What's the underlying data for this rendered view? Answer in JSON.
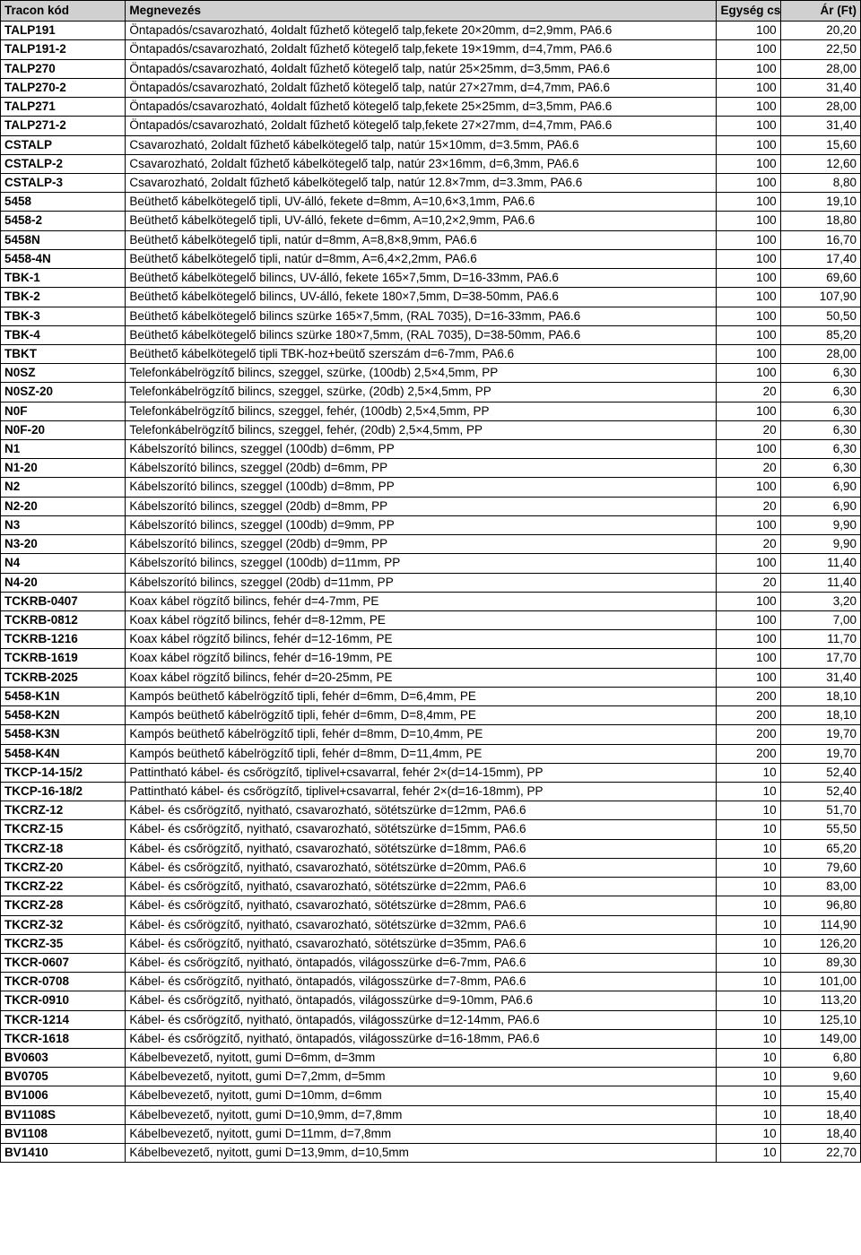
{
  "table": {
    "headers": {
      "code": "Tracon kód",
      "name": "Megnevezés",
      "qty": "Egység csomag",
      "price": "Ár (Ft)"
    },
    "rows": [
      {
        "code": "TALP191",
        "name": "Öntapadós/csavarozható, 4oldalt fűzhető kötegelő talp,fekete 20×20mm, d=2,9mm, PA6.6",
        "qty": "100",
        "price": "20,20"
      },
      {
        "code": "TALP191-2",
        "name": "Öntapadós/csavarozható, 2oldalt fűzhető kötegelő talp,fekete 19×19mm, d=4,7mm, PA6.6",
        "qty": "100",
        "price": "22,50"
      },
      {
        "code": "TALP270",
        "name": "Öntapadós/csavarozható, 4oldalt fűzhető kötegelő talp, natúr 25×25mm, d=3,5mm, PA6.6",
        "qty": "100",
        "price": "28,00"
      },
      {
        "code": "TALP270-2",
        "name": "Öntapadós/csavarozható, 2oldalt fűzhető kötegelő talp, natúr 27×27mm, d=4,7mm, PA6.6",
        "qty": "100",
        "price": "31,40"
      },
      {
        "code": "TALP271",
        "name": "Öntapadós/csavarozható, 4oldalt fűzhető kötegelő talp,fekete 25×25mm, d=3,5mm, PA6.6",
        "qty": "100",
        "price": "28,00"
      },
      {
        "code": "TALP271-2",
        "name": "Öntapadós/csavarozható, 2oldalt fűzhető kötegelő talp,fekete 27×27mm, d=4,7mm, PA6.6",
        "qty": "100",
        "price": "31,40"
      },
      {
        "code": "CSTALP",
        "name": "Csavarozható, 2oldalt fűzhető kábelkötegelő talp, natúr 15×10mm, d=3.5mm, PA6.6",
        "qty": "100",
        "price": "15,60"
      },
      {
        "code": "CSTALP-2",
        "name": "Csavarozható, 2oldalt fűzhető kábelkötegelő talp, natúr 23×16mm, d=6,3mm, PA6.6",
        "qty": "100",
        "price": "12,60"
      },
      {
        "code": "CSTALP-3",
        "name": "Csavarozható, 2oldalt fűzhető kábelkötegelő talp, natúr 12.8×7mm, d=3.3mm, PA6.6",
        "qty": "100",
        "price": "8,80"
      },
      {
        "code": "5458",
        "name": "Beüthető kábelkötegelő tipli, UV-álló, fekete d=8mm, A=10,6×3,1mm, PA6.6",
        "qty": "100",
        "price": "19,10"
      },
      {
        "code": "5458-2",
        "name": "Beüthető kábelkötegelő tipli, UV-álló, fekete d=6mm, A=10,2×2,9mm, PA6.6",
        "qty": "100",
        "price": "18,80"
      },
      {
        "code": "5458N",
        "name": "Beüthető kábelkötegelő tipli, natúr d=8mm, A=8,8×8,9mm, PA6.6",
        "qty": "100",
        "price": "16,70"
      },
      {
        "code": "5458-4N",
        "name": "Beüthető kábelkötegelő tipli, natúr d=8mm, A=6,4×2,2mm, PA6.6",
        "qty": "100",
        "price": "17,40"
      },
      {
        "code": "TBK-1",
        "name": "Beüthető kábelkötegelő bilincs, UV-álló, fekete 165×7,5mm, D=16-33mm, PA6.6",
        "qty": "100",
        "price": "69,60"
      },
      {
        "code": "TBK-2",
        "name": "Beüthető kábelkötegelő bilincs, UV-álló, fekete 180×7,5mm, D=38-50mm, PA6.6",
        "qty": "100",
        "price": "107,90"
      },
      {
        "code": "TBK-3",
        "name": "Beüthető kábelkötegelő bilincs szürke 165×7,5mm, (RAL 7035), D=16-33mm, PA6.6",
        "qty": "100",
        "price": "50,50"
      },
      {
        "code": "TBK-4",
        "name": "Beüthető kábelkötegelő bilincs szürke 180×7,5mm, (RAL 7035), D=38-50mm, PA6.6",
        "qty": "100",
        "price": "85,20"
      },
      {
        "code": "TBKT",
        "name": "Beüthető kábelkötegelő tipli TBK-hoz+beütő szerszám d=6-7mm, PA6.6",
        "qty": "100",
        "price": "28,00"
      },
      {
        "code": "N0SZ",
        "name": "Telefonkábelrögzítő bilincs, szeggel, szürke, (100db) 2,5×4,5mm, PP",
        "qty": "100",
        "price": "6,30"
      },
      {
        "code": "N0SZ-20",
        "name": "Telefonkábelrögzítő bilincs, szeggel, szürke, (20db) 2,5×4,5mm, PP",
        "qty": "20",
        "price": "6,30"
      },
      {
        "code": "N0F",
        "name": "Telefonkábelrögzítő bilincs, szeggel, fehér, (100db) 2,5×4,5mm, PP",
        "qty": "100",
        "price": "6,30"
      },
      {
        "code": "N0F-20",
        "name": "Telefonkábelrögzítő bilincs, szeggel, fehér, (20db) 2,5×4,5mm, PP",
        "qty": "20",
        "price": "6,30"
      },
      {
        "code": "N1",
        "name": "Kábelszorító bilincs, szeggel (100db) d=6mm, PP",
        "qty": "100",
        "price": "6,30"
      },
      {
        "code": "N1-20",
        "name": "Kábelszorító bilincs, szeggel (20db) d=6mm, PP",
        "qty": "20",
        "price": "6,30"
      },
      {
        "code": "N2",
        "name": "Kábelszorító bilincs, szeggel (100db) d=8mm, PP",
        "qty": "100",
        "price": "6,90"
      },
      {
        "code": "N2-20",
        "name": "Kábelszorító bilincs, szeggel (20db) d=8mm, PP",
        "qty": "20",
        "price": "6,90"
      },
      {
        "code": "N3",
        "name": "Kábelszorító bilincs, szeggel (100db) d=9mm, PP",
        "qty": "100",
        "price": "9,90"
      },
      {
        "code": "N3-20",
        "name": "Kábelszorító bilincs, szeggel (20db) d=9mm, PP",
        "qty": "20",
        "price": "9,90"
      },
      {
        "code": "N4",
        "name": "Kábelszorító bilincs, szeggel (100db) d=11mm, PP",
        "qty": "100",
        "price": "11,40"
      },
      {
        "code": "N4-20",
        "name": "Kábelszorító bilincs, szeggel (20db) d=11mm, PP",
        "qty": "20",
        "price": "11,40"
      },
      {
        "code": "TCKRB-0407",
        "name": "Koax kábel rögzítő bilincs, fehér d=4-7mm, PE",
        "qty": "100",
        "price": "3,20"
      },
      {
        "code": "TCKRB-0812",
        "name": "Koax kábel rögzítő bilincs, fehér d=8-12mm, PE",
        "qty": "100",
        "price": "7,00"
      },
      {
        "code": "TCKRB-1216",
        "name": "Koax kábel rögzítő bilincs, fehér d=12-16mm, PE",
        "qty": "100",
        "price": "11,70"
      },
      {
        "code": "TCKRB-1619",
        "name": "Koax kábel rögzítő bilincs, fehér d=16-19mm, PE",
        "qty": "100",
        "price": "17,70"
      },
      {
        "code": "TCKRB-2025",
        "name": "Koax kábel rögzítő bilincs, fehér d=20-25mm, PE",
        "qty": "100",
        "price": "31,40"
      },
      {
        "code": "5458-K1N",
        "name": "Kampós beüthető kábelrögzítő tipli, fehér d=6mm, D=6,4mm, PE",
        "qty": "200",
        "price": "18,10"
      },
      {
        "code": "5458-K2N",
        "name": "Kampós beüthető kábelrögzítő tipli, fehér d=6mm, D=8,4mm, PE",
        "qty": "200",
        "price": "18,10"
      },
      {
        "code": "5458-K3N",
        "name": "Kampós beüthető kábelrögzítő tipli, fehér d=8mm, D=10,4mm, PE",
        "qty": "200",
        "price": "19,70"
      },
      {
        "code": "5458-K4N",
        "name": "Kampós beüthető kábelrögzítő tipli, fehér d=8mm, D=11,4mm, PE",
        "qty": "200",
        "price": "19,70"
      },
      {
        "code": "TKCP-14-15/2",
        "name": "Pattintható kábel- és csőrögzítő, tiplivel+csavarral, fehér 2×(d=14-15mm), PP",
        "qty": "10",
        "price": "52,40"
      },
      {
        "code": "TKCP-16-18/2",
        "name": "Pattintható kábel- és csőrögzítő, tiplivel+csavarral, fehér 2×(d=16-18mm), PP",
        "qty": "10",
        "price": "52,40"
      },
      {
        "code": "TKCRZ-12",
        "name": "Kábel- és csőrögzítő, nyitható, csavarozható, sötétszürke d=12mm, PA6.6",
        "qty": "10",
        "price": "51,70"
      },
      {
        "code": "TKCRZ-15",
        "name": "Kábel- és csőrögzítő, nyitható, csavarozható, sötétszürke d=15mm, PA6.6",
        "qty": "10",
        "price": "55,50"
      },
      {
        "code": "TKCRZ-18",
        "name": "Kábel- és csőrögzítő, nyitható, csavarozható, sötétszürke d=18mm, PA6.6",
        "qty": "10",
        "price": "65,20"
      },
      {
        "code": "TKCRZ-20",
        "name": "Kábel- és csőrögzítő, nyitható, csavarozható, sötétszürke d=20mm, PA6.6",
        "qty": "10",
        "price": "79,60"
      },
      {
        "code": "TKCRZ-22",
        "name": "Kábel- és csőrögzítő, nyitható, csavarozható, sötétszürke d=22mm, PA6.6",
        "qty": "10",
        "price": "83,00"
      },
      {
        "code": "TKCRZ-28",
        "name": "Kábel- és csőrögzítő, nyitható, csavarozható, sötétszürke d=28mm, PA6.6",
        "qty": "10",
        "price": "96,80"
      },
      {
        "code": "TKCRZ-32",
        "name": "Kábel- és csőrögzítő, nyitható, csavarozható, sötétszürke d=32mm, PA6.6",
        "qty": "10",
        "price": "114,90"
      },
      {
        "code": "TKCRZ-35",
        "name": "Kábel- és csőrögzítő, nyitható, csavarozható, sötétszürke d=35mm, PA6.6",
        "qty": "10",
        "price": "126,20"
      },
      {
        "code": "TKCR-0607",
        "name": "Kábel- és csőrögzítő, nyitható, öntapadós, világosszürke d=6-7mm, PA6.6",
        "qty": "10",
        "price": "89,30"
      },
      {
        "code": "TKCR-0708",
        "name": "Kábel- és csőrögzítő, nyitható, öntapadós, világosszürke d=7-8mm, PA6.6",
        "qty": "10",
        "price": "101,00"
      },
      {
        "code": "TKCR-0910",
        "name": "Kábel- és csőrögzítő, nyitható, öntapadós, világosszürke d=9-10mm, PA6.6",
        "qty": "10",
        "price": "113,20"
      },
      {
        "code": "TKCR-1214",
        "name": "Kábel- és csőrögzítő, nyitható, öntapadós, világosszürke d=12-14mm, PA6.6",
        "qty": "10",
        "price": "125,10"
      },
      {
        "code": "TKCR-1618",
        "name": "Kábel- és csőrögzítő, nyitható, öntapadós, világosszürke d=16-18mm, PA6.6",
        "qty": "10",
        "price": "149,00"
      },
      {
        "code": "BV0603",
        "name": "Kábelbevezető, nyitott, gumi  D=6mm, d=3mm",
        "qty": "10",
        "price": "6,80"
      },
      {
        "code": "BV0705",
        "name": "Kábelbevezető, nyitott, gumi  D=7,2mm, d=5mm",
        "qty": "10",
        "price": "9,60"
      },
      {
        "code": "BV1006",
        "name": "Kábelbevezető, nyitott, gumi  D=10mm, d=6mm",
        "qty": "10",
        "price": "15,40"
      },
      {
        "code": "BV1108S",
        "name": "Kábelbevezető, nyitott, gumi  D=10,9mm, d=7,8mm",
        "qty": "10",
        "price": "18,40"
      },
      {
        "code": "BV1108",
        "name": "Kábelbevezető, nyitott, gumi  D=11mm, d=7,8mm",
        "qty": "10",
        "price": "18,40"
      },
      {
        "code": "BV1410",
        "name": "Kábelbevezető, nyitott, gumi  D=13,9mm, d=10,5mm",
        "qty": "10",
        "price": "22,70"
      }
    ]
  }
}
